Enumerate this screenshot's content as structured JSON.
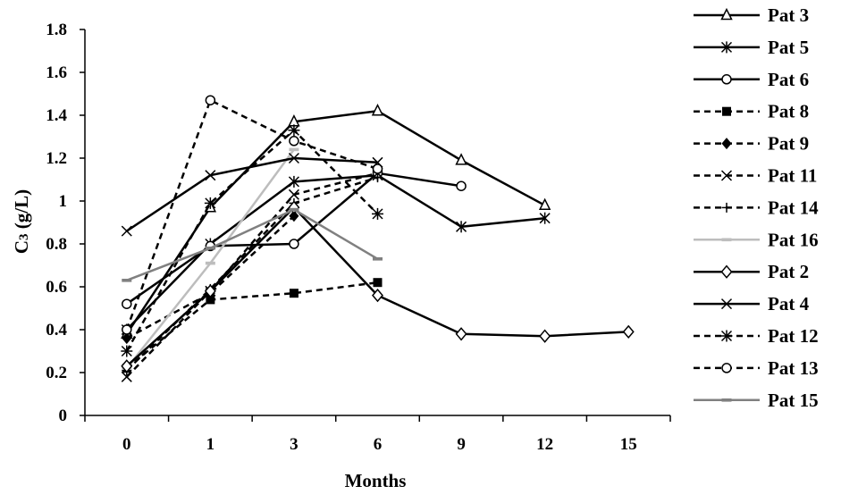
{
  "chart_data": {
    "type": "line",
    "title": "",
    "xlabel": "Months",
    "ylabel": "C3 (g/L)",
    "ylim": [
      0,
      1.8
    ],
    "y_ticks": [
      "0",
      "0.2",
      "0.4",
      "0.6",
      "0.8",
      "1",
      "1.2",
      "1.4",
      "1.6",
      "1.8"
    ],
    "categories": [
      "0",
      "1",
      "3",
      "6",
      "9",
      "12",
      "15"
    ],
    "grid": false,
    "legend_position": "right",
    "series": [
      {
        "name": "Pat 3",
        "values": [
          0.38,
          0.97,
          1.37,
          1.42,
          1.19,
          0.98,
          null
        ],
        "dash": "solid",
        "color": "#000000",
        "marker": "triangle-open"
      },
      {
        "name": "Pat 5",
        "values": [
          0.4,
          0.8,
          1.09,
          1.12,
          0.88,
          0.92,
          null
        ],
        "dash": "solid",
        "color": "#000000",
        "marker": "asterisk"
      },
      {
        "name": "Pat 6",
        "values": [
          0.52,
          0.79,
          0.8,
          1.13,
          1.07,
          null,
          null
        ],
        "dash": "solid",
        "color": "#000000",
        "marker": "circle-open"
      },
      {
        "name": "Pat 8",
        "values": [
          0.22,
          0.54,
          0.57,
          0.62,
          null,
          null,
          null
        ],
        "dash": "dashed",
        "color": "#000000",
        "marker": "square-filled"
      },
      {
        "name": "Pat 9",
        "values": [
          0.36,
          0.57,
          0.93,
          null,
          null,
          null,
          null
        ],
        "dash": "dashed",
        "color": "#000000",
        "marker": "diamond-filled"
      },
      {
        "name": "Pat 11",
        "values": [
          0.18,
          0.58,
          1.03,
          1.13,
          null,
          null,
          null
        ],
        "dash": "dashed",
        "color": "#000000",
        "marker": "x"
      },
      {
        "name": "Pat 14",
        "values": [
          0.21,
          0.59,
          0.99,
          1.11,
          null,
          null,
          null
        ],
        "dash": "dashed",
        "color": "#000000",
        "marker": "plus"
      },
      {
        "name": "Pat 16",
        "values": [
          0.22,
          0.71,
          1.24,
          null,
          null,
          null,
          null
        ],
        "dash": "solid",
        "color": "#bdbdbd",
        "marker": "dash"
      },
      {
        "name": "Pat 2",
        "values": [
          0.23,
          0.58,
          0.97,
          0.56,
          0.38,
          0.37,
          0.39
        ],
        "dash": "solid",
        "color": "#000000",
        "marker": "diamond-open"
      },
      {
        "name": "Pat 4",
        "values": [
          0.86,
          1.12,
          1.2,
          1.18,
          null,
          null,
          null
        ],
        "dash": "solid",
        "color": "#000000",
        "marker": "x"
      },
      {
        "name": "Pat 12",
        "values": [
          0.3,
          0.99,
          1.33,
          0.94,
          null,
          null,
          null
        ],
        "dash": "dashed",
        "color": "#000000",
        "marker": "star"
      },
      {
        "name": "Pat 13",
        "values": [
          0.4,
          1.47,
          1.28,
          1.15,
          null,
          null,
          null
        ],
        "dash": "dashed",
        "color": "#000000",
        "marker": "circle-open"
      },
      {
        "name": "Pat 15",
        "values": [
          0.63,
          0.78,
          0.96,
          0.73,
          null,
          null,
          null
        ],
        "dash": "solid",
        "color": "#808080",
        "marker": "dash"
      }
    ]
  }
}
